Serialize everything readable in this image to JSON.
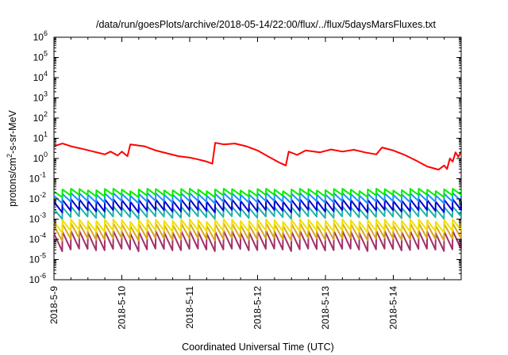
{
  "chart_data": {
    "type": "line",
    "title": "/data/run/goesPlots/archive/2018-05-14/22:00/flux/../flux/5daysMarsFluxes.txt",
    "xlabel": "Coordinated Universal Time (UTC)",
    "ylabel_parts": {
      "before": "protons/cm",
      "sup": "2",
      "after": "-s-sr-MeV"
    },
    "y_scale": "log",
    "ylim": [
      1e-06,
      1000000.0
    ],
    "xlim": [
      "2018-05-09",
      "2018-05-15"
    ],
    "x_ticks": [
      "2018-5-9",
      "2018-5-10",
      "2018-5-11",
      "2018-5-12",
      "2018-5-13",
      "2018-5-14"
    ],
    "y_ticks": [
      {
        "base": "10",
        "exp": "-6"
      },
      {
        "base": "10",
        "exp": "-5"
      },
      {
        "base": "10",
        "exp": "-4"
      },
      {
        "base": "10",
        "exp": "-3"
      },
      {
        "base": "10",
        "exp": "-2"
      },
      {
        "base": "10",
        "exp": "-1"
      },
      {
        "base": "10",
        "exp": "0"
      },
      {
        "base": "10",
        "exp": "1"
      },
      {
        "base": "10",
        "exp": "2"
      },
      {
        "base": "10",
        "exp": "3"
      },
      {
        "base": "10",
        "exp": "4"
      },
      {
        "base": "10",
        "exp": "5"
      },
      {
        "base": "10",
        "exp": "6"
      }
    ],
    "grid": false,
    "series": [
      {
        "color": "#ff0000",
        "points": [
          [
            "2018-05-09T00:00",
            4.0
          ],
          [
            "2018-05-09T03:00",
            5.5
          ],
          [
            "2018-05-09T06:00",
            4.0
          ],
          [
            "2018-05-09T10:00",
            3.0
          ],
          [
            "2018-05-09T14:00",
            2.2
          ],
          [
            "2018-05-09T18:00",
            1.6
          ],
          [
            "2018-05-09T20:00",
            2.2
          ],
          [
            "2018-05-09T22:30",
            1.4
          ],
          [
            "2018-05-10T00:00",
            2.2
          ],
          [
            "2018-05-10T02:00",
            1.3
          ],
          [
            "2018-05-10T03:00",
            5.0
          ],
          [
            "2018-05-10T08:00",
            4.0
          ],
          [
            "2018-05-10T12:00",
            2.5
          ],
          [
            "2018-05-10T16:00",
            1.8
          ],
          [
            "2018-05-10T20:00",
            1.3
          ],
          [
            "2018-05-11T00:00",
            1.1
          ],
          [
            "2018-05-11T03:00",
            0.9
          ],
          [
            "2018-05-11T06:00",
            0.7
          ],
          [
            "2018-05-11T08:00",
            0.55
          ],
          [
            "2018-05-11T09:00",
            6.0
          ],
          [
            "2018-05-11T12:00",
            5.0
          ],
          [
            "2018-05-11T16:00",
            5.5
          ],
          [
            "2018-05-11T20:00",
            4.0
          ],
          [
            "2018-05-12T00:00",
            2.5
          ],
          [
            "2018-05-12T04:00",
            1.2
          ],
          [
            "2018-05-12T08:00",
            0.6
          ],
          [
            "2018-05-12T10:00",
            0.45
          ],
          [
            "2018-05-12T11:00",
            2.2
          ],
          [
            "2018-05-12T14:00",
            1.5
          ],
          [
            "2018-05-12T17:00",
            2.5
          ],
          [
            "2018-05-12T22:00",
            2.0
          ],
          [
            "2018-05-13T02:00",
            2.8
          ],
          [
            "2018-05-13T06:00",
            2.2
          ],
          [
            "2018-05-13T10:00",
            2.7
          ],
          [
            "2018-05-13T14:00",
            2.0
          ],
          [
            "2018-05-13T18:00",
            1.6
          ],
          [
            "2018-05-13T20:00",
            3.5
          ],
          [
            "2018-05-14T00:00",
            2.5
          ],
          [
            "2018-05-14T04:00",
            1.5
          ],
          [
            "2018-05-14T08:00",
            0.8
          ],
          [
            "2018-05-14T12:00",
            0.4
          ],
          [
            "2018-05-14T16:00",
            0.28
          ],
          [
            "2018-05-14T18:00",
            0.45
          ],
          [
            "2018-05-14T19:00",
            0.3
          ],
          [
            "2018-05-14T20:00",
            1.0
          ],
          [
            "2018-05-14T21:00",
            0.7
          ],
          [
            "2018-05-14T22:00",
            2.0
          ],
          [
            "2018-05-14T23:00",
            1.2
          ],
          [
            "2018-05-15T00:00",
            2.2
          ]
        ]
      },
      {
        "color": "#00ee00",
        "sawtooth": {
          "period_hours": 3,
          "base": 0.014,
          "amplitude": 0.014
        }
      },
      {
        "color": "#1e90ff",
        "sawtooth": {
          "period_hours": 3,
          "base": 0.007,
          "amplitude": 0.01
        }
      },
      {
        "color": "#0000cd",
        "sawtooth": {
          "period_hours": 3,
          "base": 0.0025,
          "amplitude": 0.006
        }
      },
      {
        "color": "#20b2aa",
        "sawtooth": {
          "period_hours": 3,
          "base": 0.0012,
          "amplitude": 0.0025
        }
      },
      {
        "color": "#f0e000",
        "sawtooth": {
          "period_hours": 3,
          "base": 0.00025,
          "amplitude": 0.0006
        }
      },
      {
        "color": "#daa520",
        "sawtooth": {
          "period_hours": 3,
          "base": 0.0001,
          "amplitude": 0.00045
        }
      },
      {
        "color": "#a0306a",
        "sawtooth": {
          "period_hours": 3,
          "base": 3e-05,
          "amplitude": 0.0002
        }
      }
    ]
  }
}
